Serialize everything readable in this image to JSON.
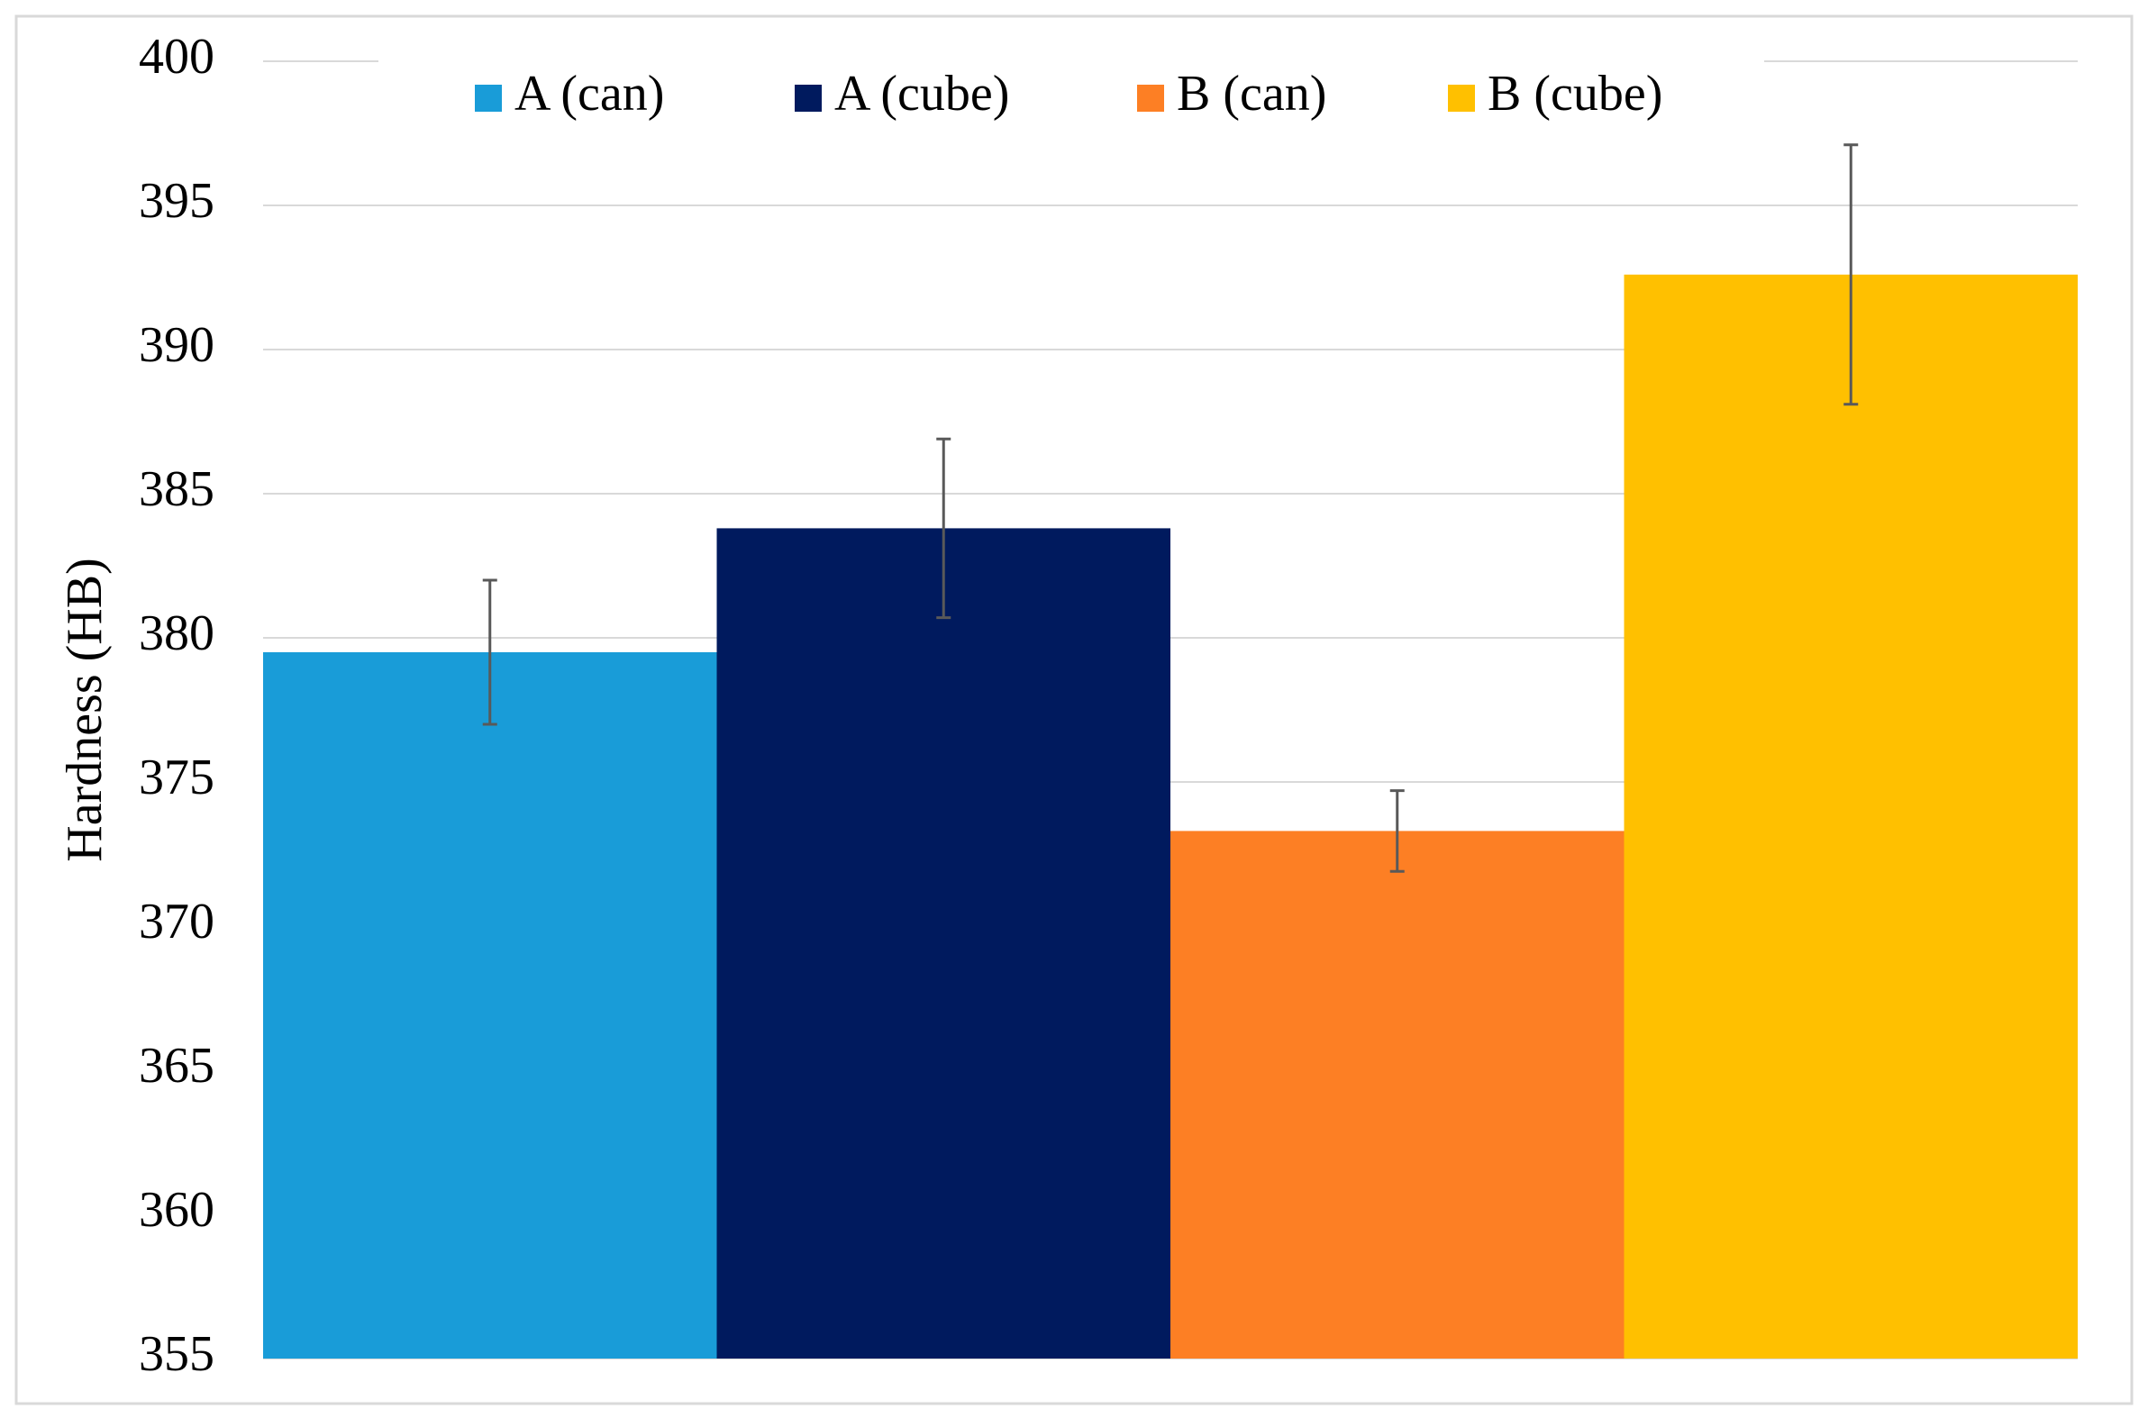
{
  "chart_data": {
    "type": "bar",
    "y_label": "Hardness (HB)",
    "categories": [
      null
    ],
    "series": [
      {
        "name": "A (can)",
        "color": "#199cd8",
        "values": [
          379.5
        ],
        "errors": [
          2.5
        ]
      },
      {
        "name": "A (cube)",
        "color": "#001a5e",
        "values": [
          383.8
        ],
        "errors": [
          3.1
        ]
      },
      {
        "name": "B (can)",
        "color": "#fd7f24",
        "values": [
          373.3
        ],
        "errors": [
          1.4
        ]
      },
      {
        "name": "B (cube)",
        "color": "#ffc000",
        "values": [
          392.6
        ],
        "errors": [
          4.5
        ]
      }
    ],
    "ylim": [
      355,
      400
    ],
    "yticks": [
      355,
      360,
      365,
      370,
      375,
      380,
      385,
      390,
      395,
      400
    ],
    "grid": true,
    "legend": "top",
    "error_color": "#595959"
  }
}
